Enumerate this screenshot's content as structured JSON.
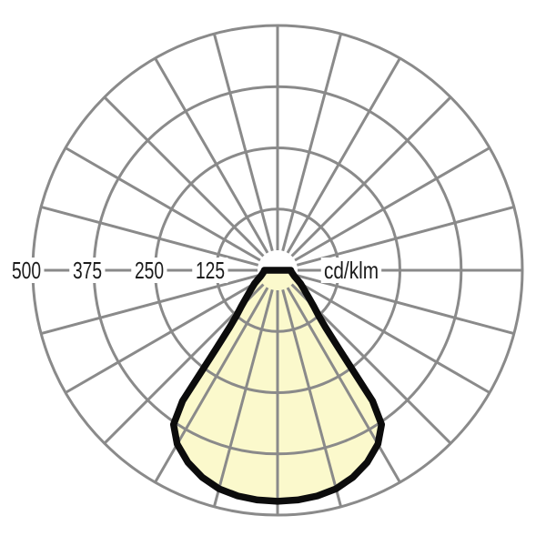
{
  "chart_data": {
    "type": "polar",
    "subtype": "luminous-intensity-distribution-curve",
    "title": "",
    "unit_label": "cd/klm",
    "radial_tick_labels": [
      "500",
      "375",
      "250",
      "125"
    ],
    "radial_ticks": [
      500,
      375,
      250,
      125
    ],
    "radial_axis_max": 500,
    "ring_values": [
      125,
      250,
      375,
      500
    ],
    "angle_grid_step_deg": 15,
    "angle_grid_spoke_count": 24,
    "legend": "none",
    "grid": "on",
    "curve": {
      "name": "intensity-distribution",
      "angles_deg_from_nadir": [
        -90,
        -85,
        -80,
        -75,
        -70,
        -65,
        -60,
        -55,
        -50,
        -45,
        -42,
        -40,
        -38,
        -36,
        -34,
        -30,
        -25,
        -20,
        -15,
        -10,
        -5,
        0,
        5,
        10,
        15,
        20,
        25,
        30,
        34,
        36,
        38,
        40,
        42,
        45,
        50,
        55,
        60,
        65,
        70,
        75,
        80,
        85,
        90
      ],
      "values_cd_per_klm": [
        27,
        28,
        30,
        33,
        37,
        44,
        54,
        65,
        80,
        105,
        126,
        152,
        205,
        330,
        380,
        410,
        433,
        450,
        462,
        468,
        471,
        472,
        471,
        468,
        462,
        450,
        433,
        410,
        380,
        330,
        205,
        152,
        126,
        105,
        80,
        65,
        54,
        44,
        37,
        33,
        30,
        28,
        27
      ],
      "value_at_nadir_cd_per_klm": 472
    },
    "colors": {
      "grid": "#8a8a8a",
      "curve_stroke": "#0c0c0c",
      "curve_fill": "#fbf9cc",
      "text": "#1b1b1b",
      "background": "#ffffff"
    }
  }
}
